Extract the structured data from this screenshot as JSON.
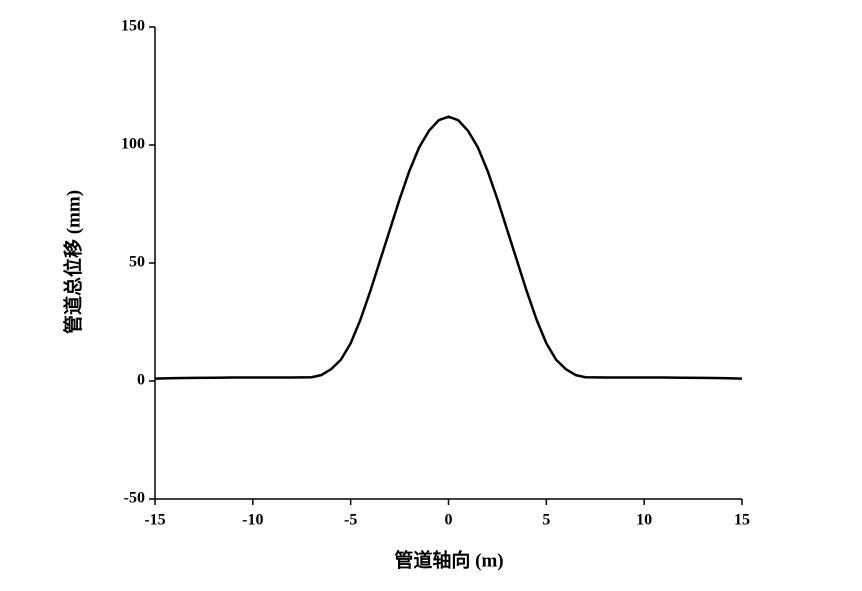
{
  "chart_data": {
    "type": "line",
    "xlabel": "管道轴向 (m)",
    "ylabel": "管道总位移 (mm)",
    "x": [
      -15,
      -14,
      -13,
      -12,
      -11,
      -10,
      -9,
      -8,
      -7,
      -6.5,
      -6,
      -5.5,
      -5,
      -4.5,
      -4,
      -3.5,
      -3,
      -2.5,
      -2,
      -1.5,
      -1,
      -0.5,
      0,
      0.5,
      1,
      1.5,
      2,
      2.5,
      3,
      3.5,
      4,
      4.5,
      5,
      5.5,
      6,
      6.5,
      7,
      8,
      9,
      10,
      11,
      12,
      13,
      14,
      15
    ],
    "series": [
      {
        "name": "管道总位移",
        "color": "#000000",
        "values": [
          1,
          1.2,
          1.3,
          1.4,
          1.5,
          1.5,
          1.5,
          1.5,
          1.6,
          2.5,
          5,
          9,
          16,
          26,
          38,
          51,
          64,
          77,
          89,
          99,
          106,
          110.5,
          112,
          110.5,
          106,
          99,
          89,
          77,
          64,
          51,
          38,
          26,
          16,
          9,
          5,
          2.5,
          1.6,
          1.5,
          1.5,
          1.5,
          1.5,
          1.4,
          1.3,
          1.2,
          1
        ]
      }
    ],
    "xlim": [
      -15,
      15
    ],
    "xticks": [
      -15,
      -10,
      -5,
      0,
      5,
      10,
      15
    ],
    "ylim": [
      -50,
      150
    ],
    "yticks": [
      -50,
      0,
      50,
      100,
      150
    ],
    "grid": false
  }
}
